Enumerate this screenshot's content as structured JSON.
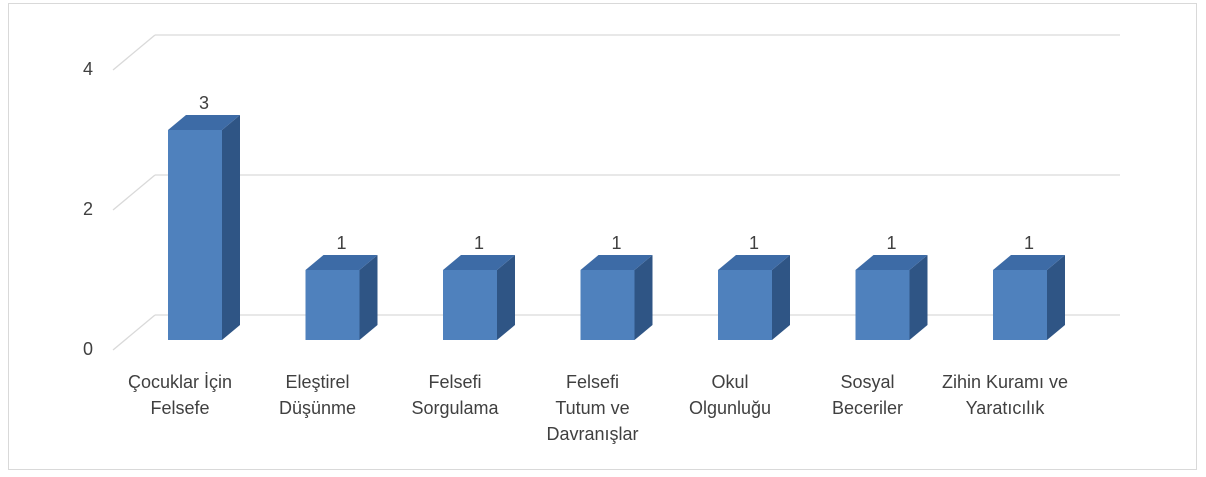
{
  "chart_data": {
    "type": "bar3d",
    "categories": [
      "Çocuklar İçin Felsefe",
      "Eleştirel Düşünme",
      "Felsefi Sorgulama",
      "Felsefi Tutum ve Davranışlar",
      "Okul Olgunluğu",
      "Sosyal Beceriler",
      "Zihin Kuramı ve Yaratıcılık"
    ],
    "values": [
      3,
      1,
      1,
      1,
      1,
      1,
      1
    ],
    "color": "#4f81bd",
    "ylim": [
      0,
      4
    ],
    "yticks": [
      0,
      2,
      4
    ],
    "grid": true,
    "data_labels": true
  }
}
